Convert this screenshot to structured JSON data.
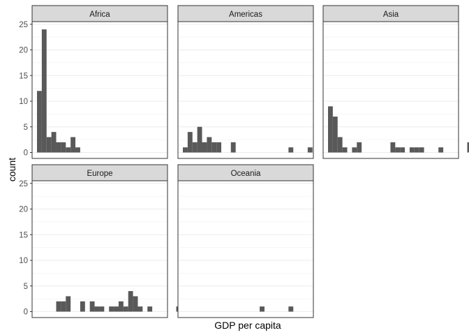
{
  "chart_data": {
    "type": "histogram",
    "facet_by": "continent",
    "xlabel": "GDP per capita",
    "ylabel": "count",
    "ylim": [
      0,
      26
    ],
    "y_ticks": [
      0,
      5,
      10,
      15,
      20,
      25
    ],
    "bins": 30,
    "facet_grid": {
      "columns": 3,
      "rows": 2
    },
    "panels": [
      {
        "label": "Africa",
        "counts": [
          12,
          24,
          3,
          4,
          2,
          2,
          1,
          3,
          1,
          0,
          0,
          0,
          0,
          0,
          0,
          0,
          0,
          0,
          0,
          0,
          0,
          0,
          0,
          0,
          0,
          0,
          0,
          0,
          0,
          0
        ]
      },
      {
        "label": "Americas",
        "counts": [
          1,
          4,
          2,
          5,
          2,
          3,
          2,
          2,
          0,
          0,
          2,
          0,
          0,
          0,
          0,
          0,
          0,
          0,
          0,
          0,
          0,
          0,
          1,
          0,
          0,
          0,
          1,
          0,
          0,
          0
        ]
      },
      {
        "label": "Asia",
        "counts": [
          9,
          7,
          3,
          1,
          0,
          1,
          2,
          0,
          0,
          0,
          0,
          0,
          0,
          2,
          1,
          1,
          0,
          1,
          1,
          1,
          0,
          0,
          0,
          1,
          0,
          0,
          0,
          0,
          0,
          2
        ]
      },
      {
        "label": "Europe",
        "counts": [
          0,
          0,
          0,
          0,
          2,
          2,
          3,
          0,
          0,
          2,
          0,
          2,
          1,
          1,
          0,
          1,
          1,
          2,
          1,
          4,
          3,
          1,
          0,
          1,
          0,
          0,
          0,
          0,
          0,
          1
        ]
      },
      {
        "label": "Oceania",
        "counts": [
          0,
          0,
          0,
          0,
          0,
          0,
          0,
          0,
          0,
          0,
          0,
          0,
          0,
          0,
          0,
          0,
          1,
          0,
          0,
          0,
          0,
          0,
          1,
          0,
          0,
          0,
          0,
          0,
          0,
          0
        ]
      }
    ],
    "grid": true,
    "bar_color": "#595959",
    "strip_color": "#d9d9d9",
    "gridline_color": "#ebebeb"
  }
}
